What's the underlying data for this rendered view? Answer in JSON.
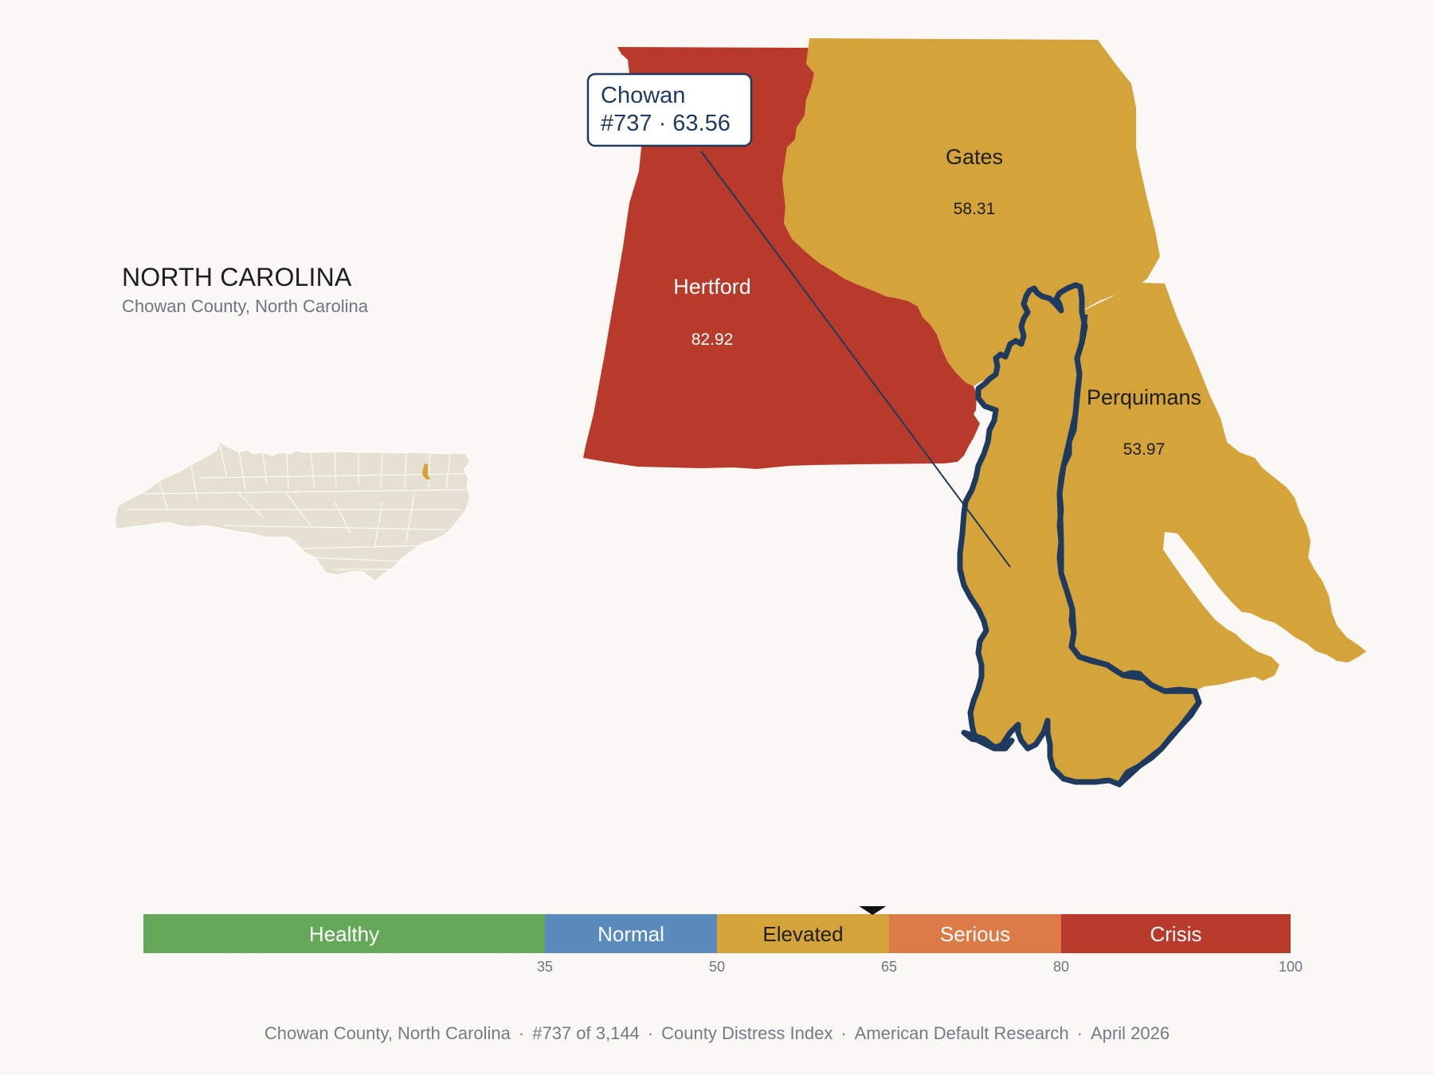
{
  "state_title": "NORTH CAROLINA",
  "state_subtitle": "Chowan County, North Carolina",
  "callout": {
    "name": "Chowan",
    "detail": "#737 · 63.56"
  },
  "counties": {
    "hertford": {
      "name": "Hertford",
      "value": "82.92",
      "color": "#b83a2b"
    },
    "gates": {
      "name": "Gates",
      "value": "58.31",
      "color": "#d4a43a"
    },
    "perquimans": {
      "name": "Perquimans",
      "value": "53.97",
      "color": "#d4a43a"
    },
    "chowan": {
      "name": "Chowan",
      "value": "63.56",
      "color": "#d4a43a",
      "outline": "#1f3a5f"
    }
  },
  "scale": {
    "segments": [
      {
        "label": "Healthy",
        "from": 0,
        "to": 35,
        "color": "#66a85a"
      },
      {
        "label": "Normal",
        "from": 35,
        "to": 50,
        "color": "#5b8bbd"
      },
      {
        "label": "Elevated",
        "from": 50,
        "to": 65,
        "color": "#d4a43a"
      },
      {
        "label": "Serious",
        "from": 65,
        "to": 80,
        "color": "#dc7a48"
      },
      {
        "label": "Crisis",
        "from": 80,
        "to": 100,
        "color": "#b83a2b"
      }
    ],
    "ticks": [
      "35",
      "50",
      "65",
      "80",
      "100"
    ],
    "marker_value": 63.56
  },
  "footer": {
    "county": "Chowan County, North Carolina",
    "rank": "#737 of 3,144",
    "index": "County Distress Index",
    "source": "American Default Research",
    "date": "April 2026"
  }
}
